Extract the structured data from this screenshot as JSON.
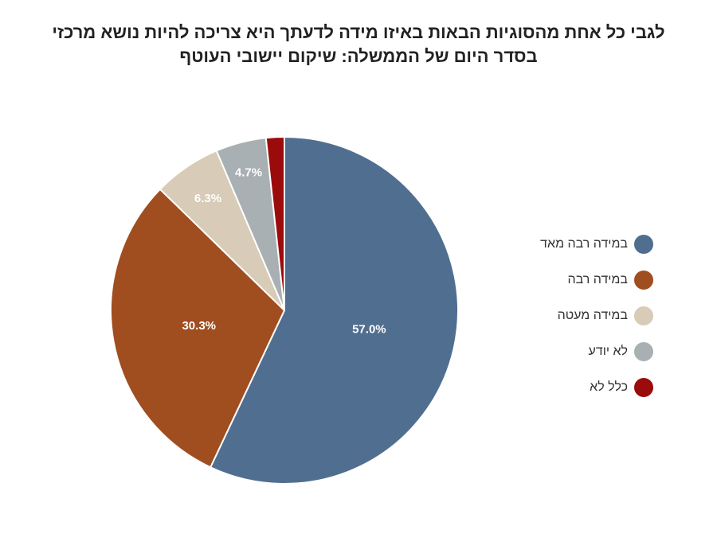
{
  "chart_data": {
    "type": "pie",
    "title_lines": [
      "לגבי כל אחת מהסוגיות הבאות באיזו מידה לדעתך היא צריכה להיות נושא מרכזי",
      "בסדר היום של הממשלה: שיקום יישובי העוטף"
    ],
    "slices": [
      {
        "label": "במידה רבה מאד",
        "value": 57.0,
        "value_label": "57.0%",
        "color": "#506e8f"
      },
      {
        "label": "במידה רבה",
        "value": 30.3,
        "value_label": "30.3%",
        "color": "#a04d20"
      },
      {
        "label": "במידה מעטה",
        "value": 6.3,
        "value_label": "6.3%",
        "color": "#d8cbb7"
      },
      {
        "label": "לא יודע",
        "value": 4.7,
        "value_label": "4.7%",
        "color": "#a9b0b3"
      },
      {
        "label": "כלל לא",
        "value": 1.7,
        "value_label": "",
        "color": "#9b0b0b"
      }
    ],
    "legend_position": "right",
    "start_angle": "12 o'clock",
    "direction": "clockwise"
  }
}
